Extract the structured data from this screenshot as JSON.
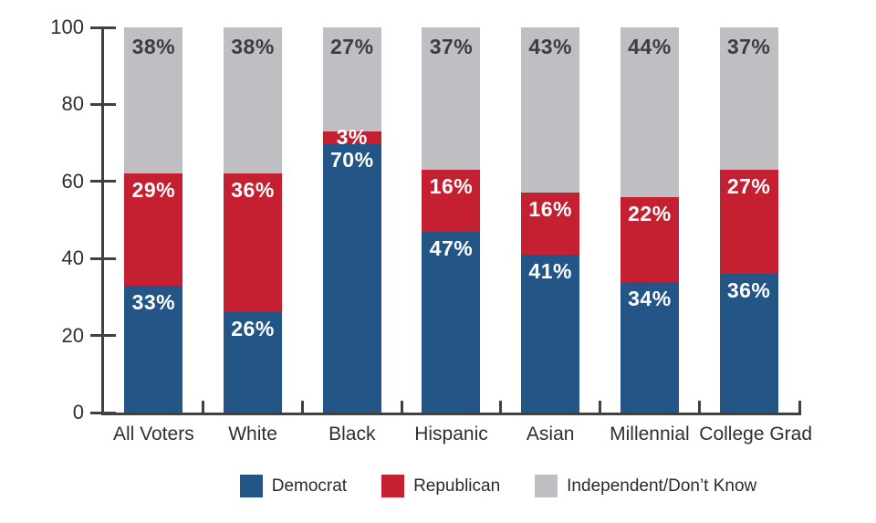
{
  "chart_data": {
    "type": "bar",
    "stacked": true,
    "orientation": "vertical",
    "title": "",
    "xlabel": "",
    "ylabel": "",
    "categories": [
      "All Voters",
      "White",
      "Black",
      "Hispanic",
      "Asian",
      "Millennial",
      "College Grad"
    ],
    "series": [
      {
        "name": "Democrat",
        "color": "#235587",
        "label_color": "#ffffff",
        "values": [
          33,
          26,
          70,
          47,
          41,
          34,
          36
        ]
      },
      {
        "name": "Republican",
        "color": "#c42032",
        "label_color": "#ffffff",
        "values": [
          29,
          36,
          3,
          16,
          16,
          22,
          27
        ]
      },
      {
        "name": "Independent/Don’t Know",
        "color": "#bfbec2",
        "label_color": "#3d3d3f",
        "values": [
          38,
          38,
          27,
          37,
          43,
          44,
          37
        ]
      }
    ],
    "value_suffix": "%",
    "ylim": [
      0,
      100
    ],
    "yticks": [
      0,
      20,
      40,
      60,
      80,
      100
    ],
    "ytick_labels": [
      "0",
      "20",
      "40",
      "60",
      "80",
      "100"
    ],
    "grid": false,
    "legend_position": "bottom",
    "axis_color": "#414141"
  }
}
